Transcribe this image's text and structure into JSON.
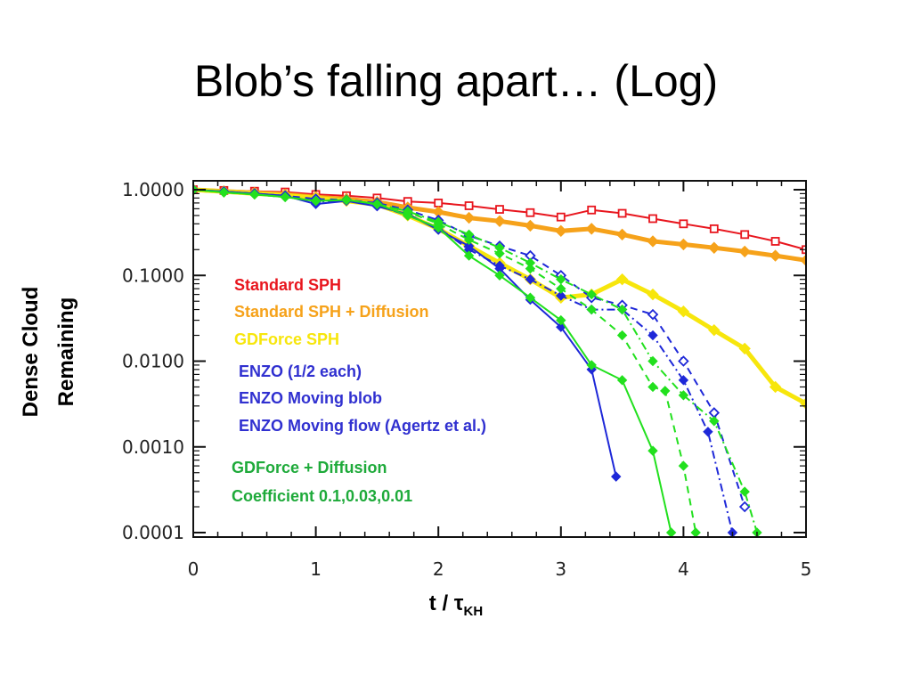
{
  "slide": {
    "title": "Blob’s falling apart… (Log)",
    "ylabel_line1": "Dense Cloud",
    "ylabel_line2": "Remaining",
    "xlabel_main": "t / τ",
    "xlabel_sub": "KH"
  },
  "chart_data": {
    "type": "line",
    "title": "Blob’s falling apart… (Log)",
    "xlabel": "t / τKH",
    "ylabel": "Dense Cloud Remaining",
    "xlim": [
      0,
      5
    ],
    "ylim": [
      0.0001,
      1.0
    ],
    "yscale": "log",
    "xticks": [
      "0",
      "1",
      "2",
      "3",
      "4",
      "5"
    ],
    "yticks": [
      "1.0000",
      "0.1000",
      "0.0100",
      "0.0010",
      "0.0001"
    ],
    "grid": false,
    "annotations": [
      {
        "text": "Standard SPH",
        "color": "#e8161e"
      },
      {
        "text": "Standard SPH + Diffusion",
        "color": "#f6a21a"
      },
      {
        "text": "GDForce SPH",
        "color": "#f7e60c"
      },
      {
        "text": "ENZO   (1/2 each)",
        "color": "#3030d0"
      },
      {
        "text": "ENZO Moving blob",
        "color": "#3030d0"
      },
      {
        "text": "ENZO Moving flow (Agertz et al.)",
        "color": "#3030d0"
      },
      {
        "text": "GDForce + Diffusion",
        "color": "#1eaa3a"
      },
      {
        "text": "Coefficient 0.1,0.03,0.01",
        "color": "#1eaa3a"
      }
    ],
    "series": [
      {
        "color": "#e8161e",
        "marker": "open-square",
        "dash": "solid",
        "width": 2,
        "x": [
          0.0,
          0.25,
          0.5,
          0.75,
          1.0,
          1.25,
          1.5,
          1.75,
          2.0,
          2.25,
          2.5,
          2.75,
          3.0,
          3.25,
          3.5,
          3.75,
          4.0,
          4.25,
          4.5,
          4.75,
          5.0
        ],
        "y": [
          1.0,
          0.98,
          0.96,
          0.94,
          0.88,
          0.85,
          0.8,
          0.73,
          0.7,
          0.65,
          0.59,
          0.54,
          0.48,
          0.58,
          0.53,
          0.46,
          0.4,
          0.35,
          0.3,
          0.25,
          0.2
        ]
      },
      {
        "color": "#f6a21a",
        "marker": "filled-diamond",
        "dash": "solid",
        "width": 5,
        "x": [
          0.0,
          0.25,
          0.5,
          0.75,
          1.0,
          1.25,
          1.5,
          1.75,
          2.0,
          2.25,
          2.5,
          2.75,
          3.0,
          3.25,
          3.5,
          3.75,
          4.0,
          4.25,
          4.5,
          4.75,
          5.0
        ],
        "y": [
          1.0,
          0.96,
          0.92,
          0.88,
          0.82,
          0.78,
          0.72,
          0.62,
          0.55,
          0.47,
          0.43,
          0.38,
          0.33,
          0.35,
          0.3,
          0.25,
          0.23,
          0.21,
          0.19,
          0.17,
          0.15
        ]
      },
      {
        "color": "#f7e60c",
        "marker": "filled-diamond",
        "dash": "solid",
        "width": 5,
        "x": [
          0.0,
          0.25,
          0.5,
          0.75,
          1.0,
          1.25,
          1.5,
          1.75,
          2.0,
          2.25,
          2.5,
          2.75,
          3.0,
          3.25,
          3.5,
          3.75,
          4.0,
          4.25,
          4.5,
          4.75,
          5.0
        ],
        "y": [
          1.0,
          0.95,
          0.9,
          0.86,
          0.8,
          0.74,
          0.67,
          0.5,
          0.35,
          0.22,
          0.14,
          0.09,
          0.055,
          0.06,
          0.09,
          0.06,
          0.038,
          0.023,
          0.014,
          0.005,
          0.0032
        ]
      },
      {
        "color": "#1e28d8",
        "marker": "filled-diamond",
        "dash": "solid",
        "width": 2,
        "x": [
          0.0,
          0.25,
          0.5,
          0.75,
          1.0,
          1.25,
          1.5,
          1.75,
          2.0,
          2.25,
          2.5,
          2.75,
          3.0,
          3.25,
          3.45
        ],
        "y": [
          1.0,
          0.95,
          0.9,
          0.85,
          0.68,
          0.74,
          0.64,
          0.52,
          0.34,
          0.22,
          0.12,
          0.052,
          0.025,
          0.008,
          0.00045
        ]
      },
      {
        "color": "#1e28d8",
        "marker": "open-diamond",
        "dash": "dashed",
        "width": 2,
        "x": [
          0.0,
          0.25,
          0.5,
          0.75,
          1.0,
          1.25,
          1.5,
          1.75,
          2.0,
          2.25,
          2.5,
          2.75,
          3.0,
          3.25,
          3.5,
          3.75,
          4.0,
          4.25,
          4.5
        ],
        "y": [
          1.0,
          0.95,
          0.9,
          0.85,
          0.78,
          0.76,
          0.7,
          0.58,
          0.44,
          0.29,
          0.22,
          0.17,
          0.1,
          0.055,
          0.045,
          0.035,
          0.01,
          0.0025,
          0.0002
        ]
      },
      {
        "color": "#1e28d8",
        "marker": "filled-diamond",
        "dash": "dashdot",
        "width": 2,
        "x": [
          0.0,
          0.25,
          0.5,
          0.75,
          1.0,
          1.25,
          1.5,
          1.75,
          2.0,
          2.25,
          2.5,
          2.75,
          3.0,
          3.25,
          3.5,
          3.75,
          4.0,
          4.2,
          4.4
        ],
        "y": [
          1.0,
          0.95,
          0.9,
          0.85,
          0.72,
          0.76,
          0.66,
          0.5,
          0.36,
          0.2,
          0.13,
          0.09,
          0.058,
          0.04,
          0.04,
          0.02,
          0.006,
          0.0015,
          0.0001
        ]
      },
      {
        "color": "#22e01e",
        "marker": "filled-diamond",
        "dash": "solid",
        "width": 2,
        "x": [
          0.0,
          0.25,
          0.5,
          0.75,
          1.0,
          1.25,
          1.5,
          1.75,
          2.0,
          2.25,
          2.5,
          2.75,
          3.0,
          3.25,
          3.5,
          3.75,
          3.9
        ],
        "y": [
          1.0,
          0.93,
          0.88,
          0.82,
          0.74,
          0.76,
          0.68,
          0.5,
          0.36,
          0.17,
          0.1,
          0.055,
          0.03,
          0.009,
          0.006,
          0.0009,
          0.0001
        ]
      },
      {
        "color": "#22e01e",
        "marker": "filled-diamond",
        "dash": "dashed",
        "width": 2,
        "x": [
          0.0,
          0.25,
          0.5,
          0.75,
          1.0,
          1.25,
          1.5,
          1.75,
          2.0,
          2.25,
          2.5,
          2.75,
          3.0,
          3.25,
          3.5,
          3.75,
          3.85,
          4.0,
          4.1
        ],
        "y": [
          1.0,
          0.93,
          0.88,
          0.82,
          0.74,
          0.76,
          0.68,
          0.55,
          0.4,
          0.26,
          0.18,
          0.12,
          0.07,
          0.04,
          0.02,
          0.005,
          0.0045,
          0.0006,
          0.0001
        ]
      },
      {
        "color": "#22e01e",
        "marker": "filled-diamond",
        "dash": "dashdot",
        "width": 2,
        "x": [
          0.0,
          0.25,
          0.5,
          0.75,
          1.0,
          1.25,
          1.5,
          1.75,
          2.0,
          2.25,
          2.5,
          2.75,
          3.0,
          3.25,
          3.5,
          3.75,
          4.0,
          4.25,
          4.5,
          4.6
        ],
        "y": [
          1.0,
          0.93,
          0.88,
          0.82,
          0.74,
          0.76,
          0.68,
          0.56,
          0.42,
          0.3,
          0.21,
          0.14,
          0.09,
          0.06,
          0.04,
          0.01,
          0.004,
          0.002,
          0.0003,
          0.0001
        ]
      }
    ]
  }
}
